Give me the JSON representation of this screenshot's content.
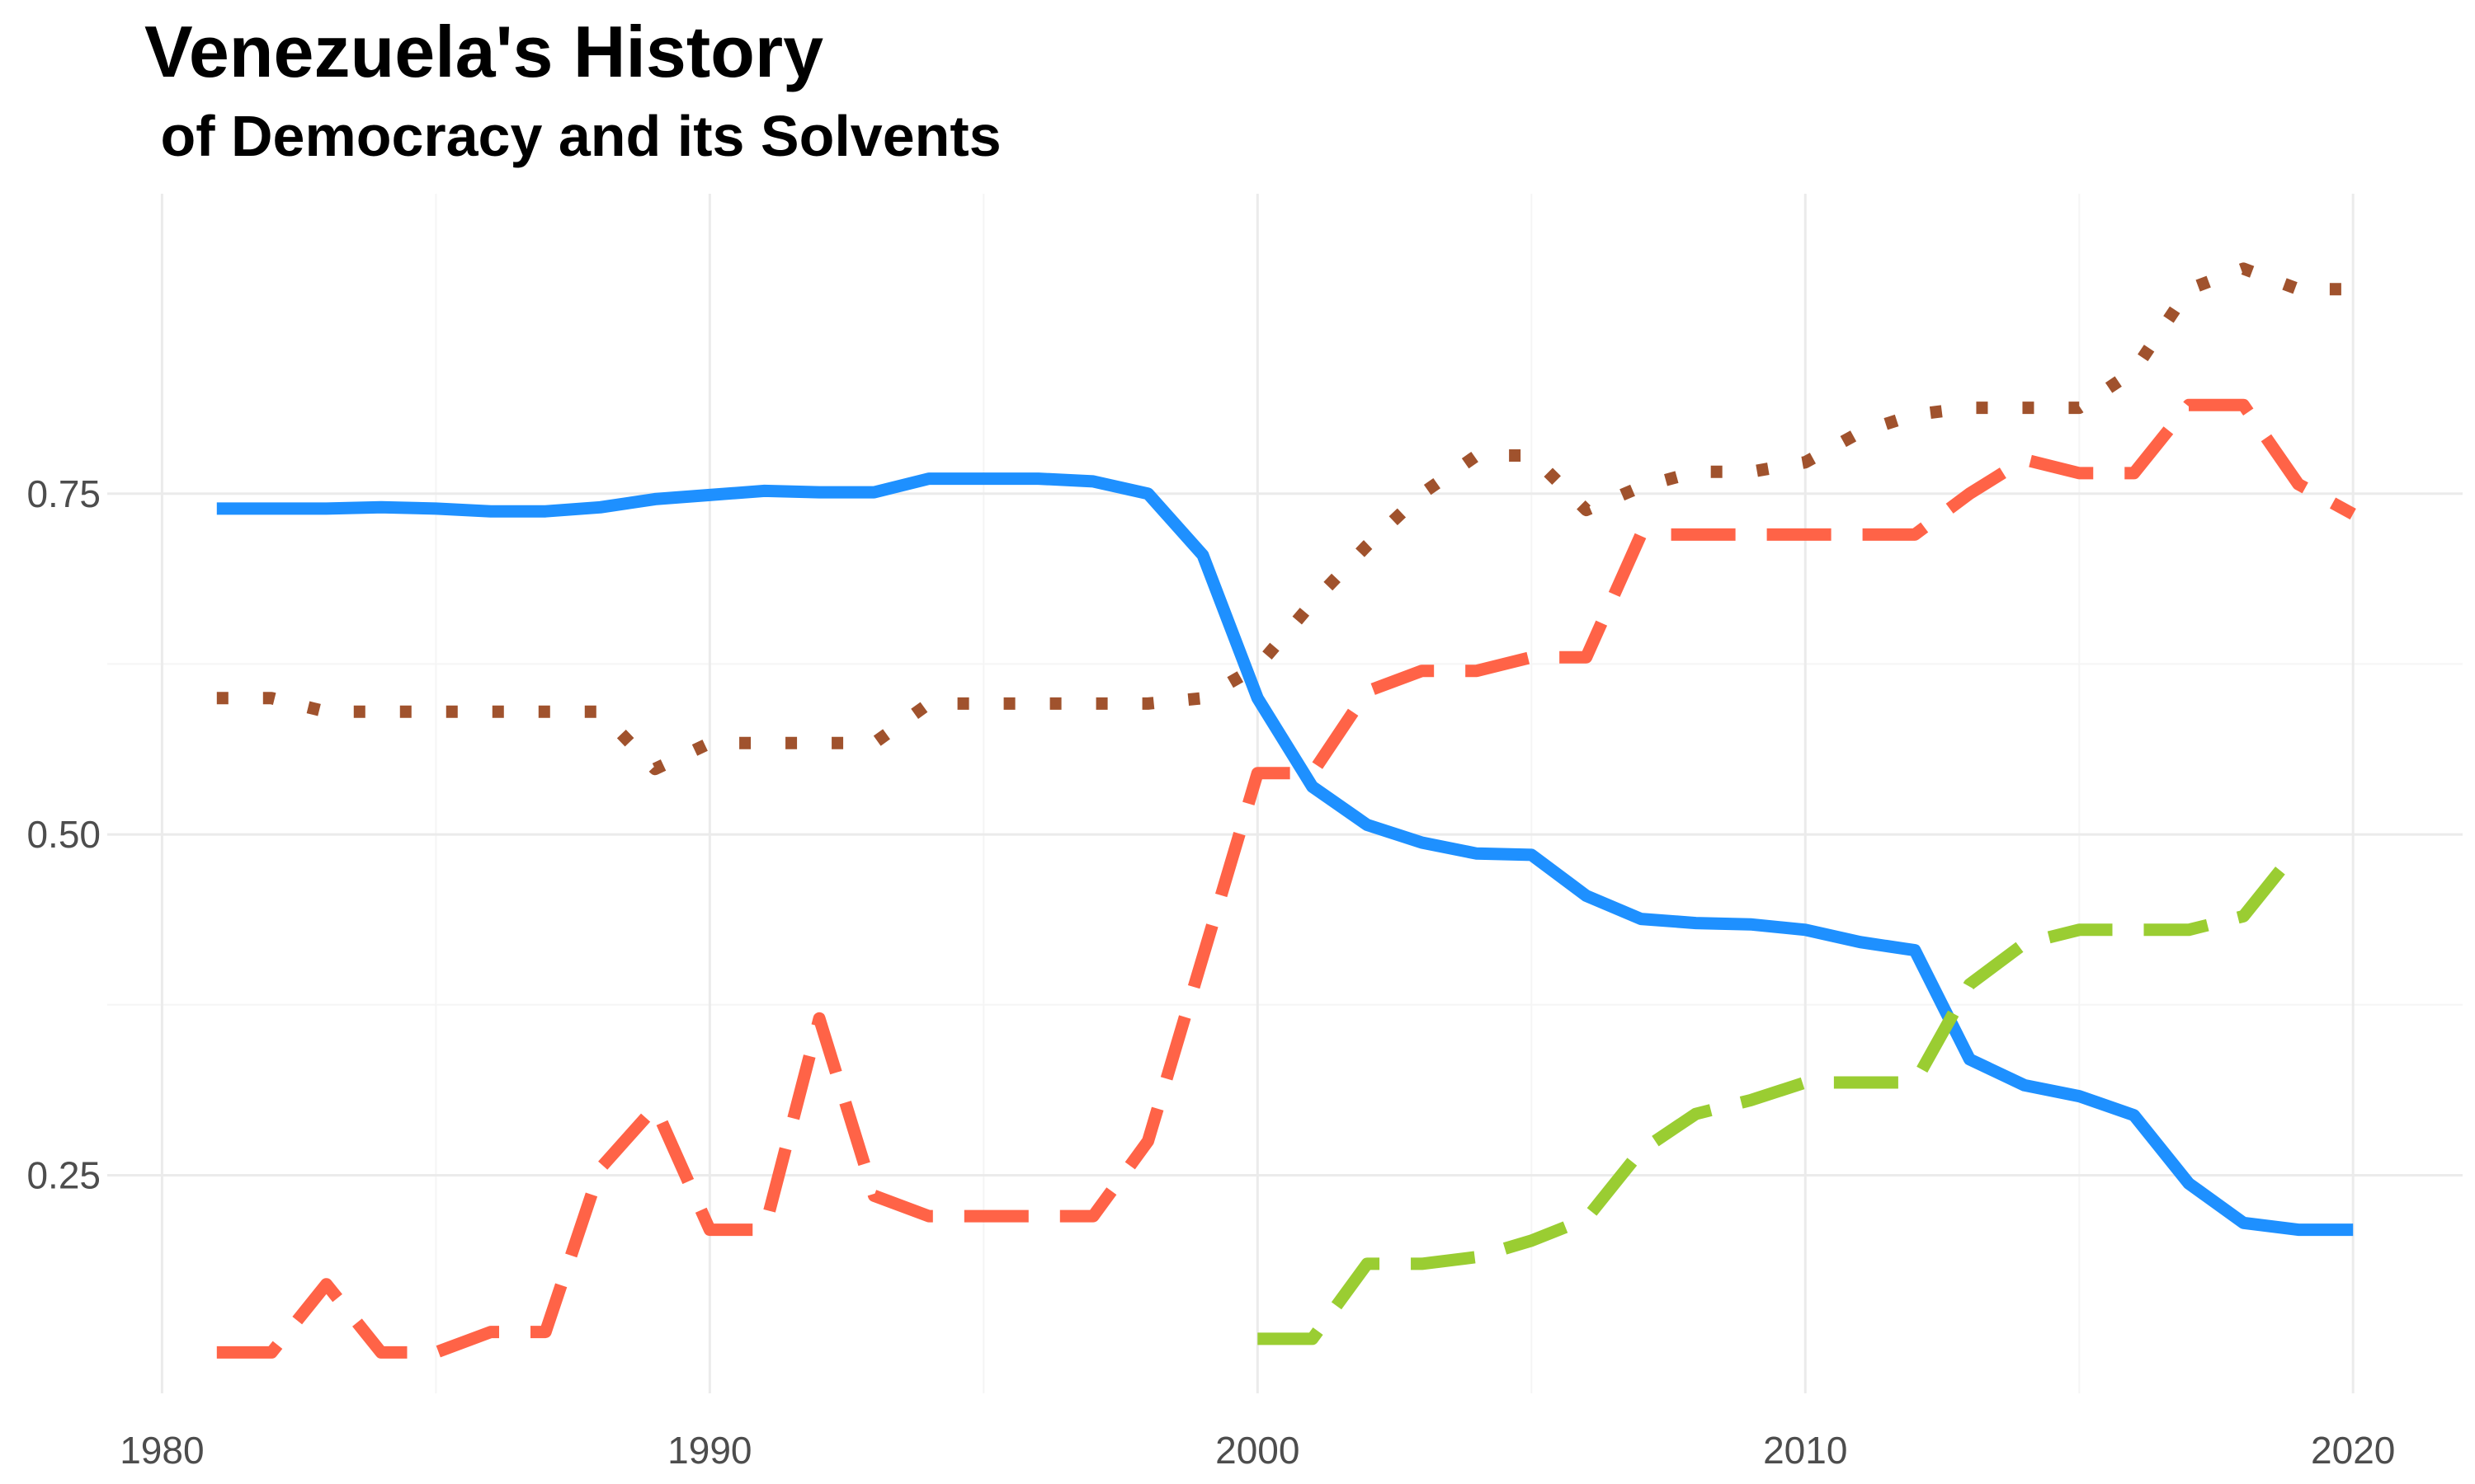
{
  "chart_data": {
    "type": "line",
    "title": "Venezuela's History",
    "subtitle": " of Democracy and its Solvents",
    "xlabel": "",
    "ylabel": "",
    "xlim": [
      1979,
      2022
    ],
    "ylim": [
      0.09,
      0.97
    ],
    "x_ticks": [
      1980,
      1990,
      2000,
      2010,
      2020
    ],
    "y_ticks": [
      0.25,
      0.5,
      0.75
    ],
    "y_tick_labels": [
      "0.25",
      "0.50",
      "0.75"
    ],
    "grid": true,
    "legend": "none",
    "series": [
      {
        "color": "#1e90ff",
        "dash": "solid",
        "points": [
          [
            1981,
            0.739
          ],
          [
            1982,
            0.739
          ],
          [
            1983,
            0.739
          ],
          [
            1984,
            0.74
          ],
          [
            1985,
            0.739
          ],
          [
            1986,
            0.737
          ],
          [
            1987,
            0.737
          ],
          [
            1988,
            0.74
          ],
          [
            1989,
            0.746
          ],
          [
            1990,
            0.749
          ],
          [
            1991,
            0.752
          ],
          [
            1992,
            0.751
          ],
          [
            1993,
            0.751
          ],
          [
            1994,
            0.761
          ],
          [
            1995,
            0.761
          ],
          [
            1996,
            0.761
          ],
          [
            1997,
            0.759
          ],
          [
            1998,
            0.75
          ],
          [
            1999,
            0.705
          ],
          [
            2000,
            0.6
          ],
          [
            2001,
            0.535
          ],
          [
            2002,
            0.507
          ],
          [
            2003,
            0.494
          ],
          [
            2004,
            0.486
          ],
          [
            2005,
            0.485
          ],
          [
            2006,
            0.455
          ],
          [
            2007,
            0.438
          ],
          [
            2008,
            0.435
          ],
          [
            2009,
            0.434
          ],
          [
            2010,
            0.43
          ],
          [
            2011,
            0.421
          ],
          [
            2012,
            0.415
          ],
          [
            2013,
            0.335
          ],
          [
            2014,
            0.316
          ],
          [
            2015,
            0.308
          ],
          [
            2016,
            0.294
          ],
          [
            2017,
            0.244
          ],
          [
            2018,
            0.215
          ],
          [
            2019,
            0.21
          ],
          [
            2020,
            0.21
          ]
        ]
      },
      {
        "color": "#a0522d",
        "dash": "dotted",
        "points": [
          [
            1981,
            0.6
          ],
          [
            1982,
            0.6
          ],
          [
            1983,
            0.59
          ],
          [
            1984,
            0.59
          ],
          [
            1985,
            0.59
          ],
          [
            1986,
            0.59
          ],
          [
            1987,
            0.59
          ],
          [
            1988,
            0.59
          ],
          [
            1989,
            0.548
          ],
          [
            1990,
            0.567
          ],
          [
            1991,
            0.567
          ],
          [
            1992,
            0.567
          ],
          [
            1993,
            0.567
          ],
          [
            1994,
            0.596
          ],
          [
            1995,
            0.596
          ],
          [
            1996,
            0.596
          ],
          [
            1997,
            0.596
          ],
          [
            1998,
            0.596
          ],
          [
            1999,
            0.6
          ],
          [
            2000,
            0.623
          ],
          [
            2001,
            0.67
          ],
          [
            2002,
            0.712
          ],
          [
            2003,
            0.75
          ],
          [
            2004,
            0.778
          ],
          [
            2005,
            0.778
          ],
          [
            2006,
            0.738
          ],
          [
            2007,
            0.755
          ],
          [
            2008,
            0.766
          ],
          [
            2009,
            0.766
          ],
          [
            2010,
            0.773
          ],
          [
            2011,
            0.795
          ],
          [
            2012,
            0.808
          ],
          [
            2013,
            0.813
          ],
          [
            2014,
            0.813
          ],
          [
            2015,
            0.813
          ],
          [
            2016,
            0.84
          ],
          [
            2017,
            0.9
          ],
          [
            2018,
            0.915
          ],
          [
            2019,
            0.9
          ],
          [
            2020,
            0.9
          ]
        ]
      },
      {
        "color": "#ff6347",
        "dash": "longdash",
        "points": [
          [
            1981,
            0.12
          ],
          [
            1982,
            0.12
          ],
          [
            1983,
            0.17
          ],
          [
            1984,
            0.12
          ],
          [
            1985,
            0.12
          ],
          [
            1986,
            0.135
          ],
          [
            1987,
            0.135
          ],
          [
            1988,
            0.255
          ],
          [
            1989,
            0.3
          ],
          [
            1990,
            0.21
          ],
          [
            1991,
            0.21
          ],
          [
            1992,
            0.365
          ],
          [
            1993,
            0.235
          ],
          [
            1994,
            0.22
          ],
          [
            1995,
            0.22
          ],
          [
            1996,
            0.22
          ],
          [
            1997,
            0.22
          ],
          [
            1998,
            0.275
          ],
          [
            1999,
            0.41
          ],
          [
            2000,
            0.545
          ],
          [
            2001,
            0.545
          ],
          [
            2002,
            0.605
          ],
          [
            2003,
            0.62
          ],
          [
            2004,
            0.62
          ],
          [
            2005,
            0.63
          ],
          [
            2006,
            0.63
          ],
          [
            2007,
            0.72
          ],
          [
            2008,
            0.72
          ],
          [
            2009,
            0.72
          ],
          [
            2010,
            0.72
          ],
          [
            2011,
            0.72
          ],
          [
            2012,
            0.72
          ],
          [
            2013,
            0.75
          ],
          [
            2014,
            0.775
          ],
          [
            2015,
            0.765
          ],
          [
            2016,
            0.765
          ],
          [
            2017,
            0.815
          ],
          [
            2018,
            0.815
          ],
          [
            2019,
            0.757
          ],
          [
            2020,
            0.735
          ]
        ]
      },
      {
        "color": "#9acd32",
        "dash": "longdash",
        "points": [
          [
            2000,
            0.13
          ],
          [
            2001,
            0.13
          ],
          [
            2002,
            0.185
          ],
          [
            2003,
            0.185
          ],
          [
            2004,
            0.19
          ],
          [
            2005,
            0.202
          ],
          [
            2006,
            0.218
          ],
          [
            2007,
            0.268
          ],
          [
            2008,
            0.295
          ],
          [
            2009,
            0.305
          ],
          [
            2010,
            0.318
          ],
          [
            2011,
            0.318
          ],
          [
            2012,
            0.318
          ],
          [
            2013,
            0.39
          ],
          [
            2014,
            0.42
          ],
          [
            2015,
            0.43
          ],
          [
            2016,
            0.43
          ],
          [
            2017,
            0.43
          ],
          [
            2018,
            0.44
          ],
          [
            2019,
            0.49
          ]
        ]
      }
    ]
  }
}
